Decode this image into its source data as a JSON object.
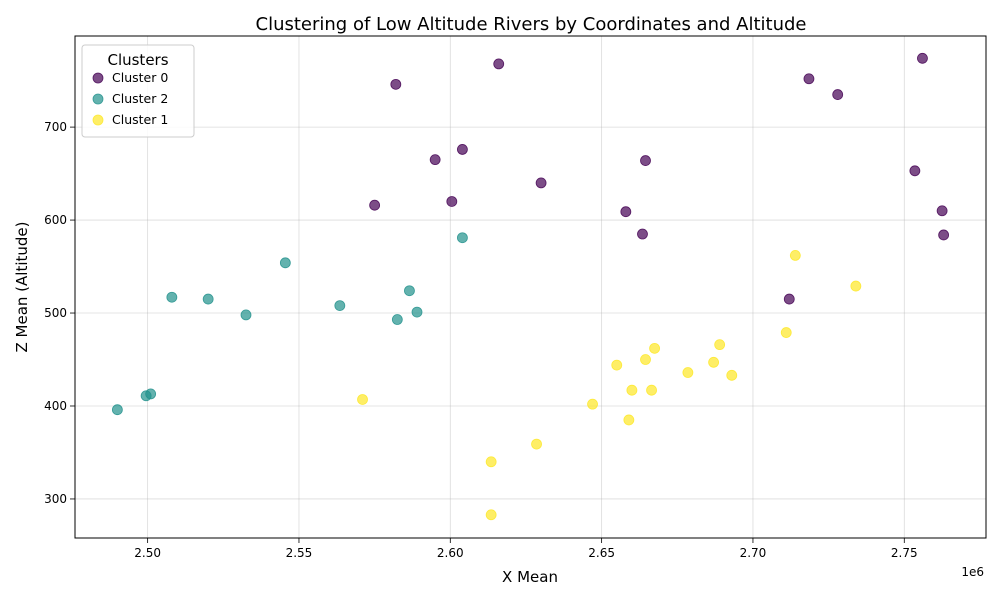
{
  "chart_data": {
    "type": "scatter",
    "title": "Clustering of Low Altitude Rivers by Coordinates and Altitude",
    "xlabel": "X Mean",
    "ylabel": "Z Mean (Altitude)",
    "x_offset_label": "1e6",
    "xlim": [
      2476000,
      2777000
    ],
    "ylim": [
      258,
      798
    ],
    "xticks": [
      2500000,
      2550000,
      2600000,
      2650000,
      2700000,
      2750000
    ],
    "xtick_labels": [
      "2.50",
      "2.55",
      "2.60",
      "2.65",
      "2.70",
      "2.75"
    ],
    "yticks": [
      300,
      400,
      500,
      600,
      700
    ],
    "ytick_labels": [
      "300",
      "400",
      "500",
      "600",
      "700"
    ],
    "grid": true,
    "legend": {
      "title": "Clusters",
      "placement": "top-left"
    },
    "series": [
      {
        "name": "Cluster 0",
        "color": "#440154",
        "points": [
          [
            2575000,
            616
          ],
          [
            2582000,
            746
          ],
          [
            2595000,
            665
          ],
          [
            2600500,
            620
          ],
          [
            2604000,
            676
          ],
          [
            2616000,
            768
          ],
          [
            2630000,
            640
          ],
          [
            2658000,
            609
          ],
          [
            2663500,
            585
          ],
          [
            2664500,
            664
          ],
          [
            2712000,
            515
          ],
          [
            2718500,
            752
          ],
          [
            2728000,
            735
          ],
          [
            2753500,
            653
          ],
          [
            2756000,
            774
          ],
          [
            2762500,
            610
          ],
          [
            2763000,
            584
          ]
        ]
      },
      {
        "name": "Cluster 2",
        "color": "#21918c",
        "points": [
          [
            2490000,
            396
          ],
          [
            2499500,
            411
          ],
          [
            2501000,
            413
          ],
          [
            2508000,
            517
          ],
          [
            2520000,
            515
          ],
          [
            2532500,
            498
          ],
          [
            2545500,
            554
          ],
          [
            2563500,
            508
          ],
          [
            2582500,
            493
          ],
          [
            2586500,
            524
          ],
          [
            2589000,
            501
          ],
          [
            2604000,
            581
          ]
        ]
      },
      {
        "name": "Cluster 1",
        "color": "#fde725",
        "points": [
          [
            2571000,
            407
          ],
          [
            2613500,
            340
          ],
          [
            2613500,
            283
          ],
          [
            2628500,
            359
          ],
          [
            2647000,
            402
          ],
          [
            2655000,
            444
          ],
          [
            2659000,
            385
          ],
          [
            2660000,
            417
          ],
          [
            2664500,
            450
          ],
          [
            2666500,
            417
          ],
          [
            2667500,
            462
          ],
          [
            2678500,
            436
          ],
          [
            2687000,
            447
          ],
          [
            2689000,
            466
          ],
          [
            2693000,
            433
          ],
          [
            2711000,
            479
          ],
          [
            2714000,
            562
          ],
          [
            2734000,
            529
          ]
        ]
      }
    ]
  }
}
